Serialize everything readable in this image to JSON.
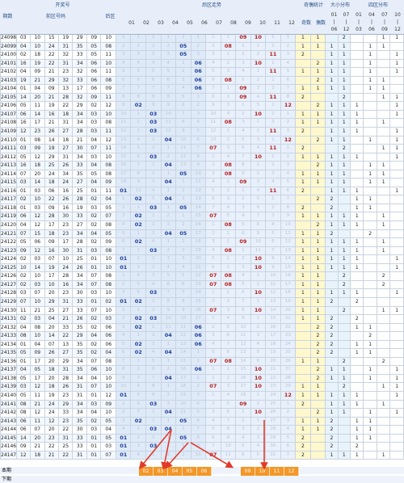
{
  "header": {
    "group_open": "开奖号",
    "period_label": "期数",
    "front_label": "前区号码",
    "back_label": "后区",
    "trend_label": "后区走势",
    "oe_group": "奇偶统计",
    "oe_odd": "奇数",
    "oe_even": "偶数",
    "bs_group": "大小分布",
    "q_group": "四区分布",
    "trend_cols": [
      "01",
      "02",
      "03",
      "04",
      "05",
      "06",
      "07",
      "08",
      "09",
      "10",
      "11",
      "12"
    ],
    "bs_cols": [
      [
        "01",
        "|",
        "06"
      ],
      [
        "07",
        "|",
        "12"
      ]
    ],
    "q_cols": [
      [
        "01",
        "|",
        "03"
      ],
      [
        "04",
        "|",
        "06"
      ],
      [
        "07",
        "|",
        "09"
      ],
      [
        "10",
        "|",
        "12"
      ]
    ]
  },
  "rows": [
    {
      "p": "24098",
      "f": [
        "03",
        "10",
        "15",
        "19",
        "29"
      ],
      "b": [
        "09",
        "10"
      ]
    },
    {
      "p": "24099",
      "f": [
        "04",
        "10",
        "24",
        "31",
        "35"
      ],
      "b": [
        "05",
        "08"
      ]
    },
    {
      "p": "24100",
      "f": [
        "02",
        "18",
        "22",
        "32",
        "33"
      ],
      "b": [
        "05",
        "11"
      ]
    },
    {
      "p": "24101",
      "f": [
        "16",
        "19",
        "22",
        "31",
        "34"
      ],
      "b": [
        "06",
        "10"
      ]
    },
    {
      "p": "24102",
      "f": [
        "04",
        "09",
        "21",
        "23",
        "32"
      ],
      "b": [
        "06",
        "11"
      ]
    },
    {
      "p": "24103",
      "f": [
        "19",
        "21",
        "29",
        "32",
        "33"
      ],
      "b": [
        "06",
        "08"
      ]
    },
    {
      "p": "24104",
      "f": [
        "01",
        "04",
        "09",
        "13",
        "17"
      ],
      "b": [
        "06",
        "09"
      ]
    },
    {
      "p": "24105",
      "f": [
        "14",
        "20",
        "21",
        "28",
        "32"
      ],
      "b": [
        "09",
        "11"
      ]
    },
    {
      "p": "24106",
      "f": [
        "05",
        "11",
        "19",
        "22",
        "29"
      ],
      "b": [
        "02",
        "12"
      ]
    },
    {
      "p": "24107",
      "f": [
        "06",
        "14",
        "16",
        "18",
        "34"
      ],
      "b": [
        "03",
        "10"
      ]
    },
    {
      "p": "24108",
      "f": [
        "16",
        "17",
        "21",
        "31",
        "34"
      ],
      "b": [
        "03",
        "08"
      ]
    },
    {
      "p": "24109",
      "f": [
        "12",
        "23",
        "26",
        "27",
        "28"
      ],
      "b": [
        "03",
        "11"
      ]
    },
    {
      "p": "24110",
      "f": [
        "01",
        "08",
        "14",
        "18",
        "21"
      ],
      "b": [
        "04",
        "12"
      ]
    },
    {
      "p": "24111",
      "f": [
        "03",
        "09",
        "19",
        "27",
        "30"
      ],
      "b": [
        "07",
        "11"
      ]
    },
    {
      "p": "24112",
      "f": [
        "05",
        "12",
        "29",
        "31",
        "34"
      ],
      "b": [
        "03",
        "10"
      ]
    },
    {
      "p": "24113",
      "f": [
        "16",
        "18",
        "25",
        "26",
        "33"
      ],
      "b": [
        "04",
        "08"
      ]
    },
    {
      "p": "24114",
      "f": [
        "07",
        "20",
        "24",
        "34",
        "35"
      ],
      "b": [
        "05",
        "08"
      ]
    },
    {
      "p": "24115",
      "f": [
        "03",
        "14",
        "18",
        "24",
        "27"
      ],
      "b": [
        "04",
        "09"
      ]
    },
    {
      "p": "24116",
      "f": [
        "01",
        "03",
        "06",
        "16",
        "25"
      ],
      "b": [
        "01",
        "11"
      ]
    },
    {
      "p": "24117",
      "f": [
        "02",
        "10",
        "22",
        "26",
        "28"
      ],
      "b": [
        "02",
        "04"
      ]
    },
    {
      "p": "24118",
      "f": [
        "01",
        "03",
        "09",
        "16",
        "19"
      ],
      "b": [
        "03",
        "05"
      ]
    },
    {
      "p": "24119",
      "f": [
        "06",
        "12",
        "28",
        "30",
        "33"
      ],
      "b": [
        "02",
        "07"
      ]
    },
    {
      "p": "24120",
      "f": [
        "04",
        "12",
        "17",
        "23",
        "27"
      ],
      "b": [
        "02",
        "08"
      ]
    },
    {
      "p": "24121",
      "f": [
        "07",
        "15",
        "18",
        "23",
        "34"
      ],
      "b": [
        "04",
        "05"
      ]
    },
    {
      "p": "24122",
      "f": [
        "05",
        "06",
        "09",
        "17",
        "28"
      ],
      "b": [
        "02",
        "09"
      ]
    },
    {
      "p": "24123",
      "f": [
        "09",
        "12",
        "16",
        "30",
        "31"
      ],
      "b": [
        "03",
        "08"
      ]
    },
    {
      "p": "24124",
      "f": [
        "02",
        "03",
        "07",
        "10",
        "25"
      ],
      "b": [
        "01",
        "10"
      ]
    },
    {
      "p": "24125",
      "f": [
        "10",
        "14",
        "19",
        "24",
        "26"
      ],
      "b": [
        "01",
        "10"
      ]
    },
    {
      "p": "24126",
      "f": [
        "02",
        "10",
        "17",
        "28",
        "34"
      ],
      "b": [
        "07",
        "08"
      ]
    },
    {
      "p": "24127",
      "f": [
        "02",
        "03",
        "10",
        "16",
        "34"
      ],
      "b": [
        "07",
        "08"
      ]
    },
    {
      "p": "24128",
      "f": [
        "03",
        "07",
        "20",
        "23",
        "30"
      ],
      "b": [
        "03",
        "10"
      ]
    },
    {
      "p": "24129",
      "f": [
        "07",
        "10",
        "29",
        "31",
        "33"
      ],
      "b": [
        "01",
        "02"
      ]
    },
    {
      "p": "24130",
      "f": [
        "11",
        "21",
        "25",
        "27",
        "33"
      ],
      "b": [
        "07",
        "10"
      ]
    },
    {
      "p": "24131",
      "f": [
        "02",
        "03",
        "04",
        "21",
        "26"
      ],
      "b": [
        "02",
        "03"
      ]
    },
    {
      "p": "24132",
      "f": [
        "04",
        "08",
        "20",
        "33",
        "35"
      ],
      "b": [
        "02",
        "06"
      ]
    },
    {
      "p": "24133",
      "f": [
        "08",
        "10",
        "14",
        "22",
        "29"
      ],
      "b": [
        "04",
        "06"
      ]
    },
    {
      "p": "24134",
      "f": [
        "01",
        "04",
        "07",
        "13",
        "35"
      ],
      "b": [
        "02",
        "06"
      ]
    },
    {
      "p": "24135",
      "f": [
        "05",
        "09",
        "26",
        "27",
        "35"
      ],
      "b": [
        "02",
        "04"
      ]
    },
    {
      "p": "24136",
      "f": [
        "01",
        "17",
        "20",
        "29",
        "34"
      ],
      "b": [
        "07",
        "08"
      ]
    },
    {
      "p": "24137",
      "f": [
        "04",
        "05",
        "18",
        "31",
        "35"
      ],
      "b": [
        "06",
        "10"
      ]
    },
    {
      "p": "24138",
      "f": [
        "05",
        "17",
        "20",
        "28",
        "34"
      ],
      "b": [
        "04",
        "10"
      ]
    },
    {
      "p": "24139",
      "f": [
        "03",
        "12",
        "18",
        "26",
        "31"
      ],
      "b": [
        "07",
        "10"
      ]
    },
    {
      "p": "24140",
      "f": [
        "05",
        "11",
        "19",
        "23",
        "31"
      ],
      "b": [
        "01",
        "12"
      ]
    },
    {
      "p": "24141",
      "f": [
        "08",
        "21",
        "24",
        "29",
        "34"
      ],
      "b": [
        "03",
        "09"
      ]
    },
    {
      "p": "24142",
      "f": [
        "08",
        "12",
        "24",
        "33",
        "34"
      ],
      "b": [
        "04",
        "10"
      ]
    },
    {
      "p": "24143",
      "f": [
        "06",
        "11",
        "12",
        "23",
        "35"
      ],
      "b": [
        "02",
        "05"
      ]
    },
    {
      "p": "24144",
      "f": [
        "06",
        "07",
        "20",
        "22",
        "30"
      ],
      "b": [
        "03",
        "04"
      ]
    },
    {
      "p": "24145",
      "f": [
        "14",
        "20",
        "23",
        "31",
        "33"
      ],
      "b": [
        "01",
        "05"
      ]
    },
    {
      "p": "24146",
      "f": [
        "09",
        "21",
        "22",
        "25",
        "33"
      ],
      "b": [
        "01",
        "03"
      ]
    },
    {
      "p": "24147",
      "f": [
        "12",
        "18",
        "21",
        "22",
        "31"
      ],
      "b": [
        "01",
        "07"
      ]
    }
  ],
  "footer": {
    "this_period": "本期",
    "next_label": "下期",
    "selectable": [
      "02",
      "03",
      "04",
      "05",
      "06",
      "09",
      "10",
      "11",
      "12"
    ]
  },
  "colors": {
    "selected": "#f29728",
    "hit_blue": "#1f3f96",
    "hit_red": "#b32020",
    "oe_bg": "#fff8cc"
  }
}
